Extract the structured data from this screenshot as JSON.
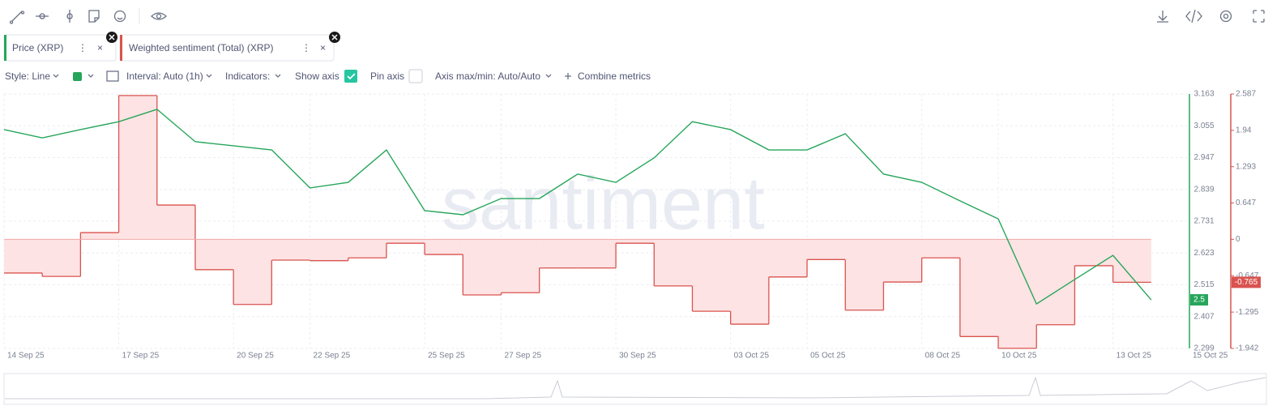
{
  "settings": {
    "style": "Style: Line",
    "interval": "Interval: Auto (1h)",
    "indicators": "Indicators:",
    "show_axis": "Show axis",
    "pin_axis": "Pin axis",
    "axis_minmax": "Axis max/min: Auto/Auto",
    "combine": "Combine metrics"
  },
  "chart_data": {
    "type": "line",
    "watermark": "santiment",
    "grid": true,
    "x": [
      "14 Sep 25",
      "15 Sep 25",
      "16 Sep 25",
      "17 Sep 25",
      "18 Sep 25",
      "19 Sep 25",
      "20 Sep 25",
      "21 Sep 25",
      "22 Sep 25",
      "23 Sep 25",
      "24 Sep 25",
      "25 Sep 25",
      "26 Sep 25",
      "27 Sep 25",
      "28 Sep 25",
      "29 Sep 25",
      "30 Sep 25",
      "01 Oct 25",
      "02 Oct 25",
      "03 Oct 25",
      "04 Oct 25",
      "05 Oct 25",
      "06 Oct 25",
      "07 Oct 25",
      "08 Oct 25",
      "09 Oct 25",
      "10 Oct 25",
      "11 Oct 25",
      "12 Oct 25",
      "13 Oct 25",
      "14 Oct 25"
    ],
    "xlim": [
      "14 Sep 25",
      "15 Oct 25"
    ],
    "xticks": [
      "14 Sep 25",
      "17 Sep 25",
      "20 Sep 25",
      "22 Sep 25",
      "25 Sep 25",
      "27 Sep 25",
      "30 Sep 25",
      "03 Oct 25",
      "05 Oct 25",
      "08 Oct 25",
      "10 Oct 25",
      "13 Oct 25",
      "15 Oct 25"
    ],
    "ylim": [
      2.299,
      3.163
    ],
    "yticks": [
      3.163,
      3.055,
      2.947,
      2.839,
      2.731,
      2.623,
      2.515,
      2.407,
      2.299
    ],
    "y2lim": [
      -1.942,
      2.587
    ],
    "y2ticks": [
      2.587,
      1.94,
      1.293,
      0.647,
      0,
      -0.647,
      -1.295,
      -1.942
    ],
    "series": [
      {
        "name": "Price (XRP)",
        "color": "#26a65b",
        "last_label": "2.5",
        "values": [
          3.042,
          3.014,
          3.042,
          3.069,
          3.111,
          3.001,
          2.987,
          2.973,
          2.844,
          2.863,
          2.973,
          2.767,
          2.753,
          2.808,
          2.808,
          2.891,
          2.863,
          2.946,
          3.069,
          3.042,
          2.973,
          2.973,
          3.028,
          2.891,
          2.863,
          2.8,
          2.739,
          2.45,
          2.533,
          2.615,
          2.464
        ]
      },
      {
        "name": "Weighted sentiment (Total) (XRP)",
        "color": "#d9534f",
        "axis": "y2",
        "step": true,
        "fill": "#fde3e3",
        "last_label": "-0.765",
        "values": [
          -0.6,
          -0.66,
          0.12,
          2.56,
          0.61,
          -0.54,
          -1.16,
          -0.37,
          -0.38,
          -0.33,
          -0.07,
          -0.27,
          -0.99,
          -0.95,
          -0.51,
          -0.51,
          -0.07,
          -0.83,
          -1.28,
          -1.51,
          -0.67,
          -0.36,
          -1.26,
          -0.76,
          -0.33,
          -1.73,
          -1.94,
          -1.52,
          -0.47,
          -0.765,
          null
        ]
      }
    ]
  }
}
